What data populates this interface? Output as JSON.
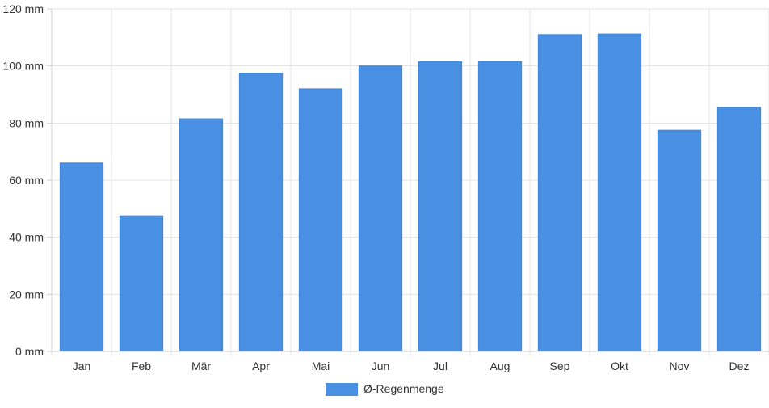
{
  "chart_data": {
    "type": "bar",
    "categories": [
      "Jan",
      "Feb",
      "Mär",
      "Apr",
      "Mai",
      "Jun",
      "Jul",
      "Aug",
      "Sep",
      "Okt",
      "Nov",
      "Dez"
    ],
    "series": [
      {
        "name": "Ø-Regenmenge",
        "values": [
          66,
          47.5,
          81.5,
          97.5,
          92,
          100,
          101.5,
          101.5,
          111,
          111.2,
          77.5,
          85.5
        ],
        "color": "#4a90e2"
      }
    ],
    "ylim": [
      0,
      120
    ],
    "y_ticks": [
      0,
      20,
      40,
      60,
      80,
      100,
      120
    ],
    "y_tick_labels": [
      "0 mm",
      "20 mm",
      "40 mm",
      "60 mm",
      "80 mm",
      "100 mm",
      "120 mm"
    ],
    "grid": true,
    "legend_position": "bottom-center"
  }
}
